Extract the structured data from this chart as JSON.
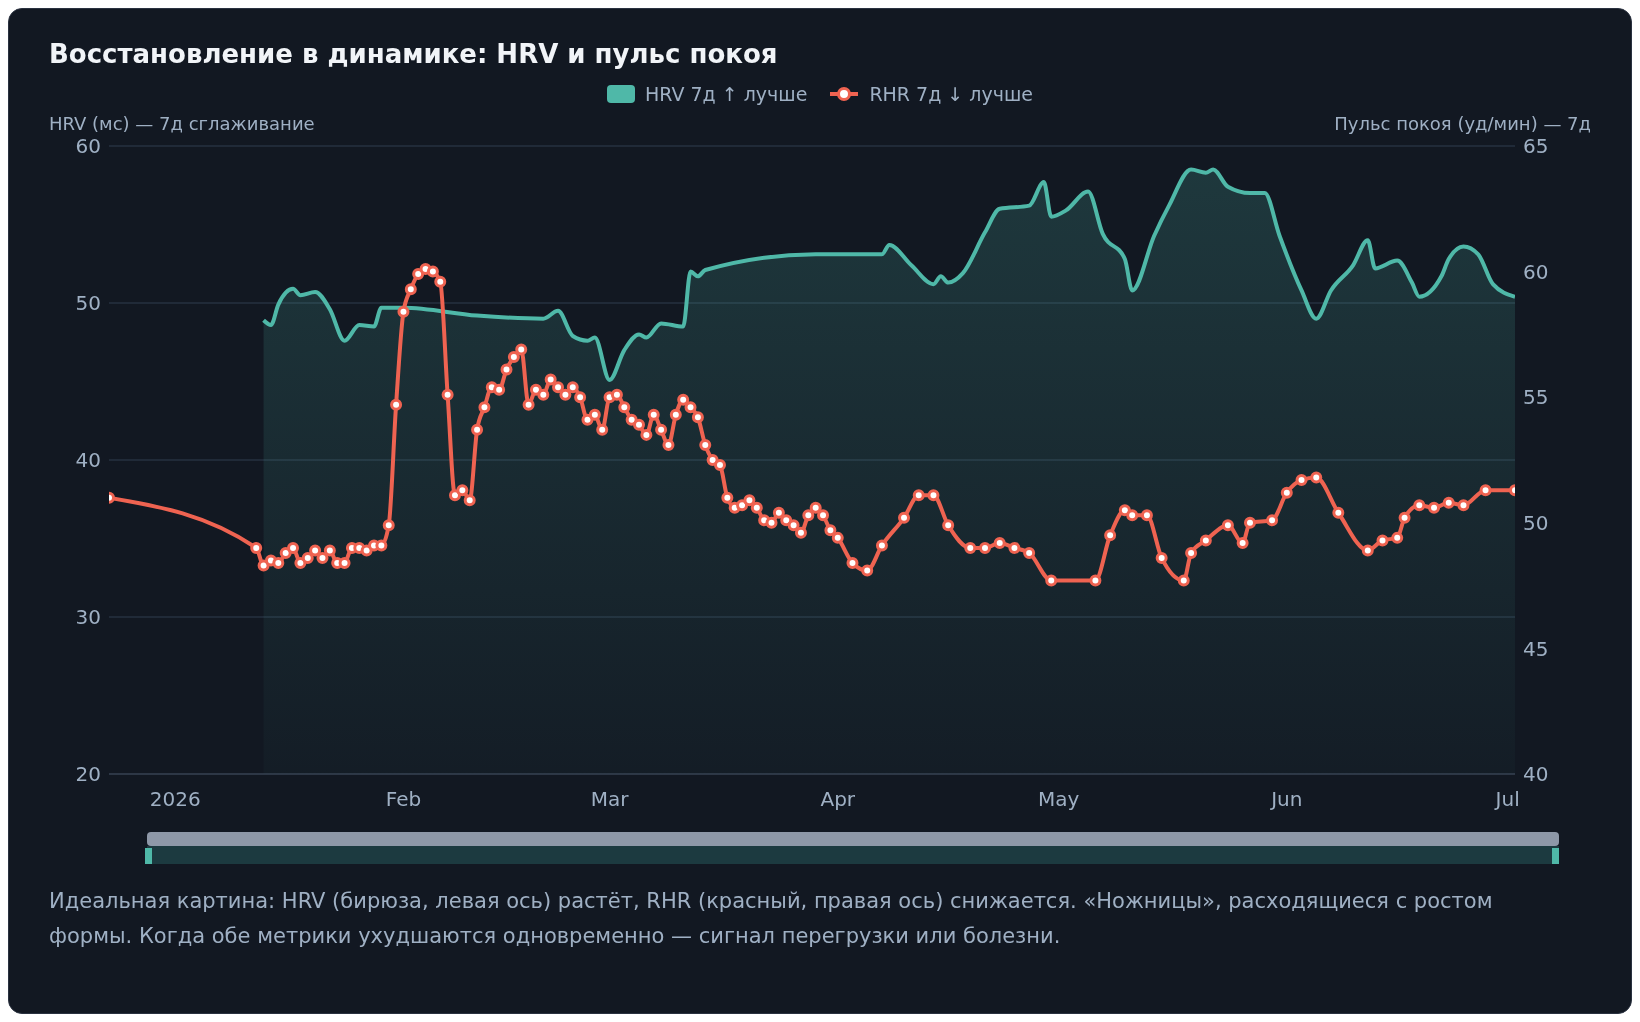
{
  "chart_data": {
    "type": "line",
    "title": "Восстановление в динамике: HRV и пульс покоя",
    "ylabel": "HRV (мс) — 7д сглаживание",
    "y2label": "Пульс покоя (уд/мин) — 7д",
    "xlim": [
      "2025-12-23",
      "2026-07-02"
    ],
    "xticks": [
      {
        "value": "2026-01-01",
        "label": "2026"
      },
      {
        "value": "2026-02-01",
        "label": "Feb"
      },
      {
        "value": "2026-03-01",
        "label": "Mar"
      },
      {
        "value": "2026-04-01",
        "label": "Apr"
      },
      {
        "value": "2026-05-01",
        "label": "May"
      },
      {
        "value": "2026-06-01",
        "label": "Jun"
      },
      {
        "value": "2026-07-01",
        "label": "Jul"
      }
    ],
    "ylim": [
      20,
      60
    ],
    "yticks": [
      20,
      30,
      40,
      50,
      60
    ],
    "y2lim": [
      40,
      65
    ],
    "y2ticks": [
      40,
      45,
      50,
      55,
      60,
      65
    ],
    "grid": "y",
    "legend": "top",
    "line_style": "solid",
    "series": [
      {
        "name": "HRV 7д ↑ лучше",
        "type": "area",
        "color": "#4fb8a8",
        "marker": "none",
        "x": [
          "2026-01-13",
          "2026-01-14",
          "2026-01-15",
          "2026-01-17",
          "2026-01-18",
          "2026-01-20",
          "2026-01-22",
          "2026-01-24",
          "2026-01-26",
          "2026-01-28",
          "2026-01-29",
          "2026-02-01",
          "2026-02-11",
          "2026-02-20",
          "2026-02-22",
          "2026-02-24",
          "2026-02-26",
          "2026-02-27",
          "2026-03-01",
          "2026-03-03",
          "2026-03-05",
          "2026-03-06",
          "2026-03-08",
          "2026-03-11",
          "2026-03-12",
          "2026-03-13",
          "2026-03-14",
          "2026-03-29",
          "2026-04-07",
          "2026-04-08",
          "2026-04-11",
          "2026-04-14",
          "2026-04-15",
          "2026-04-16",
          "2026-04-18",
          "2026-04-21",
          "2026-04-23",
          "2026-04-27",
          "2026-04-29",
          "2026-04-30",
          "2026-05-02",
          "2026-05-05",
          "2026-05-07",
          "2026-05-10",
          "2026-05-11",
          "2026-05-14",
          "2026-05-16",
          "2026-05-19",
          "2026-05-21",
          "2026-05-22",
          "2026-05-24",
          "2026-05-27",
          "2026-05-29",
          "2026-05-31",
          "2026-06-03",
          "2026-06-05",
          "2026-06-07",
          "2026-06-10",
          "2026-06-12",
          "2026-06-13",
          "2026-06-16",
          "2026-06-18",
          "2026-06-19",
          "2026-06-22",
          "2026-06-23",
          "2026-06-25",
          "2026-06-27",
          "2026-06-29",
          "2026-07-02"
        ],
        "values": [
          48.9,
          48.6,
          49.9,
          50.9,
          50.5,
          50.7,
          49.6,
          47.6,
          48.6,
          48.5,
          49.7,
          49.7,
          49.2,
          49.0,
          49.5,
          47.9,
          47.6,
          47.8,
          45.1,
          47.0,
          48.0,
          47.8,
          48.7,
          48.5,
          52.0,
          51.7,
          52.1,
          53.1,
          53.1,
          53.7,
          52.4,
          51.2,
          51.7,
          51.3,
          51.9,
          54.5,
          56.0,
          56.2,
          57.7,
          55.5,
          55.9,
          57.1,
          54.4,
          52.8,
          50.8,
          54.3,
          56.2,
          58.5,
          58.3,
          58.5,
          57.4,
          57.0,
          57.0,
          54.3,
          50.8,
          49.0,
          50.8,
          52.4,
          54.0,
          52.2,
          52.7,
          51.3,
          50.4,
          51.7,
          52.8,
          53.6,
          53.1,
          51.2,
          50.4
        ]
      },
      {
        "name": "RHR 7д ↓ лучше",
        "axis": "y2",
        "color": "#ef6351",
        "marker": "circle",
        "x": [
          "2025-12-23",
          "2026-01-12",
          "2026-01-13",
          "2026-01-14",
          "2026-01-15",
          "2026-01-16",
          "2026-01-17",
          "2026-01-18",
          "2026-01-19",
          "2026-01-20",
          "2026-01-21",
          "2026-01-22",
          "2026-01-23",
          "2026-01-24",
          "2026-01-25",
          "2026-01-26",
          "2026-01-27",
          "2026-01-28",
          "2026-01-29",
          "2026-01-30",
          "2026-01-31",
          "2026-02-01",
          "2026-02-02",
          "2026-02-03",
          "2026-02-04",
          "2026-02-05",
          "2026-02-06",
          "2026-02-07",
          "2026-02-08",
          "2026-02-09",
          "2026-02-10",
          "2026-02-11",
          "2026-02-12",
          "2026-02-13",
          "2026-02-14",
          "2026-02-15",
          "2026-02-16",
          "2026-02-17",
          "2026-02-18",
          "2026-02-19",
          "2026-02-20",
          "2026-02-21",
          "2026-02-22",
          "2026-02-23",
          "2026-02-24",
          "2026-02-25",
          "2026-02-26",
          "2026-02-27",
          "2026-02-28",
          "2026-03-01",
          "2026-03-02",
          "2026-03-03",
          "2026-03-04",
          "2026-03-05",
          "2026-03-06",
          "2026-03-07",
          "2026-03-08",
          "2026-03-09",
          "2026-03-10",
          "2026-03-11",
          "2026-03-12",
          "2026-03-13",
          "2026-03-14",
          "2026-03-15",
          "2026-03-16",
          "2026-03-17",
          "2026-03-18",
          "2026-03-19",
          "2026-03-20",
          "2026-03-21",
          "2026-03-22",
          "2026-03-23",
          "2026-03-24",
          "2026-03-25",
          "2026-03-26",
          "2026-03-27",
          "2026-03-28",
          "2026-03-29",
          "2026-03-30",
          "2026-03-31",
          "2026-04-01",
          "2026-04-03",
          "2026-04-05",
          "2026-04-07",
          "2026-04-10",
          "2026-04-12",
          "2026-04-14",
          "2026-04-16",
          "2026-04-19",
          "2026-04-21",
          "2026-04-23",
          "2026-04-25",
          "2026-04-27",
          "2026-04-30",
          "2026-05-06",
          "2026-05-08",
          "2026-05-10",
          "2026-05-11",
          "2026-05-13",
          "2026-05-15",
          "2026-05-18",
          "2026-05-19",
          "2026-05-21",
          "2026-05-24",
          "2026-05-26",
          "2026-05-27",
          "2026-05-30",
          "2026-06-01",
          "2026-06-03",
          "2026-06-05",
          "2026-06-08",
          "2026-06-12",
          "2026-06-14",
          "2026-06-16",
          "2026-06-17",
          "2026-06-19",
          "2026-06-21",
          "2026-06-23",
          "2026-06-25",
          "2026-06-28",
          "2026-07-02"
        ],
        "values": [
          51.0,
          49.0,
          48.3,
          48.5,
          48.4,
          48.8,
          49.0,
          48.4,
          48.6,
          48.9,
          48.6,
          48.9,
          48.4,
          48.4,
          49.0,
          49.0,
          48.9,
          49.1,
          49.1,
          49.9,
          54.7,
          58.4,
          59.3,
          59.9,
          60.1,
          60.0,
          59.6,
          55.1,
          51.1,
          51.3,
          50.9,
          53.7,
          54.6,
          55.4,
          55.3,
          56.1,
          56.6,
          56.9,
          54.7,
          55.3,
          55.1,
          55.7,
          55.4,
          55.1,
          55.4,
          55.0,
          54.1,
          54.3,
          53.7,
          55.0,
          55.1,
          54.6,
          54.1,
          53.9,
          53.5,
          54.3,
          53.7,
          53.1,
          54.3,
          54.9,
          54.6,
          54.2,
          53.1,
          52.5,
          52.3,
          51.0,
          50.6,
          50.7,
          50.9,
          50.6,
          50.1,
          50.0,
          50.4,
          50.1,
          49.9,
          49.6,
          50.3,
          50.6,
          50.3,
          49.7,
          49.4,
          48.4,
          48.1,
          49.1,
          50.2,
          51.1,
          51.1,
          49.9,
          49.0,
          49.0,
          49.2,
          49.0,
          48.8,
          47.7,
          47.7,
          49.5,
          50.5,
          50.3,
          50.3,
          48.6,
          47.7,
          48.8,
          49.3,
          49.9,
          49.2,
          50.0,
          50.1,
          51.2,
          51.7,
          51.8,
          50.4,
          48.9,
          49.3,
          49.4,
          50.2,
          50.7,
          50.6,
          50.8,
          50.7,
          51.3,
          51.3
        ]
      }
    ],
    "annotations": [
      "Идеальная картина: HRV (бирюза, левая ось) растёт, RHR (красный, правая ось) снижается. «Ножницы», расходящиеся с ростом формы. Когда обе метрики ухудшаются одновременно — сигнал перегрузки или болезни."
    ]
  }
}
